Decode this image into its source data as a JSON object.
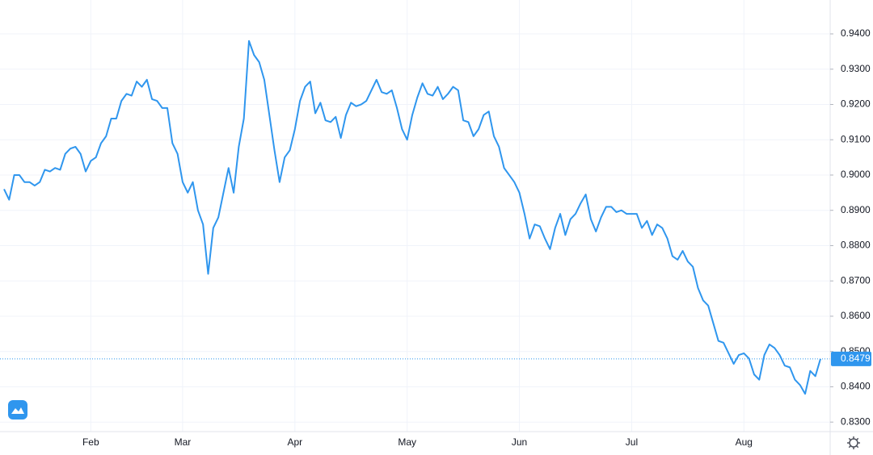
{
  "chart_data": {
    "type": "line",
    "color": "#2f96ee",
    "categories": [
      null,
      null,
      null,
      null,
      null,
      null,
      null,
      null,
      null,
      null,
      null,
      null,
      null,
      null,
      null,
      null,
      null,
      "Feb",
      null,
      null,
      null,
      null,
      null,
      null,
      null,
      null,
      null,
      null,
      null,
      null,
      null,
      null,
      null,
      null,
      null,
      "Mar",
      null,
      null,
      null,
      null,
      null,
      null,
      null,
      null,
      null,
      null,
      null,
      null,
      null,
      null,
      null,
      null,
      null,
      null,
      null,
      null,
      null,
      "Apr",
      null,
      null,
      null,
      null,
      null,
      null,
      null,
      null,
      null,
      null,
      null,
      null,
      null,
      null,
      null,
      null,
      null,
      null,
      null,
      null,
      null,
      "May",
      null,
      null,
      null,
      null,
      null,
      null,
      null,
      null,
      null,
      null,
      null,
      null,
      null,
      null,
      null,
      null,
      null,
      null,
      null,
      null,
      null,
      "Jun",
      null,
      null,
      null,
      null,
      null,
      null,
      null,
      null,
      null,
      null,
      null,
      null,
      null,
      null,
      null,
      null,
      null,
      null,
      null,
      null,
      null,
      "Jul",
      null,
      null,
      null,
      null,
      null,
      null,
      null,
      null,
      null,
      null,
      null,
      null,
      null,
      null,
      null,
      null,
      null,
      null,
      null,
      null,
      null,
      "Aug",
      null,
      null,
      null,
      null,
      null,
      null,
      null,
      null,
      null,
      null,
      null,
      null,
      null,
      null,
      null
    ],
    "values": [
      0.896,
      0.893,
      0.9,
      0.9,
      0.898,
      0.898,
      0.897,
      0.898,
      0.9015,
      0.901,
      0.902,
      0.9015,
      0.906,
      0.9075,
      0.908,
      0.906,
      0.901,
      0.904,
      0.905,
      0.909,
      0.911,
      0.916,
      0.916,
      0.921,
      0.923,
      0.9225,
      0.9265,
      0.925,
      0.927,
      0.9215,
      0.921,
      0.919,
      0.919,
      0.909,
      0.906,
      0.898,
      0.895,
      0.898,
      0.89,
      0.886,
      0.872,
      0.885,
      0.888,
      0.895,
      0.902,
      0.895,
      0.908,
      0.916,
      0.938,
      0.934,
      0.932,
      0.927,
      0.917,
      0.907,
      0.898,
      0.905,
      0.907,
      0.913,
      0.921,
      0.925,
      0.9265,
      0.9175,
      0.9205,
      0.9155,
      0.915,
      0.9165,
      0.9105,
      0.917,
      0.9205,
      0.9195,
      0.92,
      0.921,
      0.924,
      0.927,
      0.9235,
      0.923,
      0.924,
      0.919,
      0.913,
      0.91,
      0.917,
      0.922,
      0.926,
      0.923,
      0.9225,
      0.925,
      0.9215,
      0.923,
      0.925,
      0.924,
      0.9155,
      0.915,
      0.911,
      0.913,
      0.917,
      0.918,
      0.911,
      0.908,
      0.902,
      0.9,
      0.898,
      0.895,
      0.889,
      0.882,
      0.886,
      0.8855,
      0.882,
      0.879,
      0.885,
      0.889,
      0.883,
      0.8875,
      0.889,
      0.892,
      0.8945,
      0.8875,
      0.884,
      0.888,
      0.891,
      0.891,
      0.8895,
      0.89,
      0.889,
      0.889,
      0.889,
      0.885,
      0.887,
      0.883,
      0.886,
      0.885,
      0.882,
      0.877,
      0.876,
      0.8785,
      0.8755,
      0.874,
      0.868,
      0.8645,
      0.863,
      0.858,
      0.853,
      0.8525,
      0.8495,
      0.8465,
      0.849,
      0.8495,
      0.848,
      0.8435,
      0.842,
      0.849,
      0.852,
      0.851,
      0.849,
      0.846,
      0.8455,
      0.842,
      0.8405,
      0.838,
      0.8445,
      0.843,
      0.8479
    ],
    "ylim": [
      0.8273,
      0.9496
    ],
    "yticks": [
      {
        "value": 0.83,
        "label": "0.8300"
      },
      {
        "value": 0.84,
        "label": "0.8400"
      },
      {
        "value": 0.85,
        "label": "0.8500"
      },
      {
        "value": 0.86,
        "label": "0.8600"
      },
      {
        "value": 0.87,
        "label": "0.8700"
      },
      {
        "value": 0.88,
        "label": "0.8800"
      },
      {
        "value": 0.89,
        "label": "0.8900"
      },
      {
        "value": 0.9,
        "label": "0.9000"
      },
      {
        "value": 0.91,
        "label": "0.9100"
      },
      {
        "value": 0.92,
        "label": "0.9200"
      },
      {
        "value": 0.93,
        "label": "0.9300"
      },
      {
        "value": 0.94,
        "label": "0.9400"
      }
    ],
    "grid": true
  }
}
